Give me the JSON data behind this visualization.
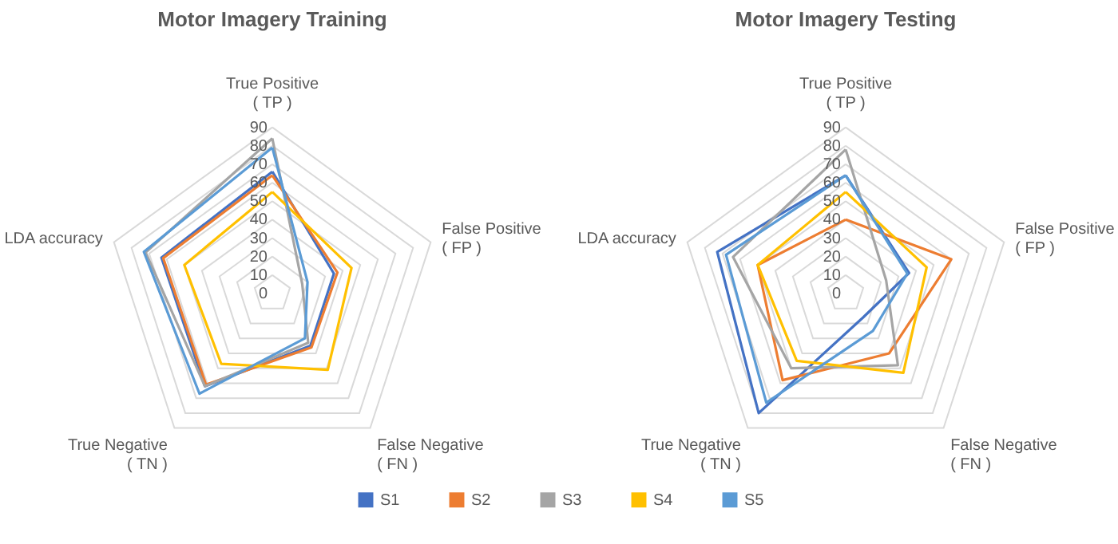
{
  "chart_data": [
    {
      "type": "radar",
      "title": "Motor Imagery Training",
      "categories": [
        "True Positive\n( TP )",
        "False Positive\n( FP )",
        "False Negative\n( FN )",
        "True Negative\n( TN )",
        "LDA accuracy"
      ],
      "ylim": [
        0,
        90
      ],
      "yticks": [
        0,
        10,
        20,
        30,
        40,
        50,
        60,
        70,
        80,
        90
      ],
      "grid": true,
      "legend": "bottom",
      "series": [
        {
          "name": "S1",
          "color": "#4472c4",
          "values": [
            66,
            35,
            35,
            62,
            63
          ]
        },
        {
          "name": "S2",
          "color": "#ed7d31",
          "values": [
            64,
            37,
            36,
            61,
            62
          ]
        },
        {
          "name": "S3",
          "color": "#a5a5a5",
          "values": [
            84,
            17,
            33,
            62,
            72
          ]
        },
        {
          "name": "S4",
          "color": "#ffc000",
          "values": [
            55,
            45,
            51,
            47,
            50
          ]
        },
        {
          "name": "S5",
          "color": "#5b9bd5",
          "values": [
            79,
            20,
            30,
            67,
            73
          ]
        }
      ]
    },
    {
      "type": "radar",
      "title": "Motor Imagery Testing",
      "categories": [
        "True Positive\n( TP )",
        "False Positive\n( FP )",
        "False Negative\n( FN )",
        "True Negative\n( TN )",
        "LDA accuracy"
      ],
      "ylim": [
        0,
        90
      ],
      "yticks": [
        0,
        10,
        20,
        30,
        40,
        50,
        60,
        70,
        80,
        90
      ],
      "grid": true,
      "legend": "bottom",
      "series": [
        {
          "name": "S1",
          "color": "#4472c4",
          "values": [
            64,
            36,
            16,
            80,
            73
          ]
        },
        {
          "name": "S2",
          "color": "#ed7d31",
          "values": [
            40,
            60,
            40,
            58,
            50
          ]
        },
        {
          "name": "S3",
          "color": "#a5a5a5",
          "values": [
            78,
            23,
            48,
            50,
            64
          ]
        },
        {
          "name": "S4",
          "color": "#ffc000",
          "values": [
            55,
            46,
            53,
            45,
            50
          ]
        },
        {
          "name": "S5",
          "color": "#5b9bd5",
          "values": [
            64,
            35,
            25,
            73,
            68
          ]
        }
      ]
    }
  ]
}
